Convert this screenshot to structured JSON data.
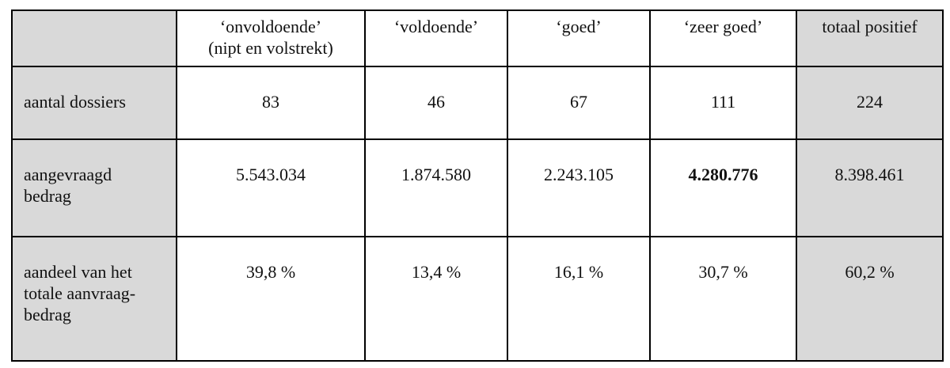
{
  "table": {
    "header": [
      [
        "‘onvoldoende’",
        "(nipt en volstrekt)"
      ],
      [
        "‘voldoende’"
      ],
      [
        "‘goed’"
      ],
      [
        "‘zeer goed’"
      ],
      [
        "totaal positief"
      ]
    ],
    "rows": [
      {
        "label": [
          "aantal dossiers"
        ],
        "cells": [
          "83",
          "46",
          "67",
          "111",
          "224"
        ]
      },
      {
        "label": [
          "aangevraagd",
          "bedrag"
        ],
        "cells": [
          "5.543.034",
          "1.874.580",
          "2.243.105",
          "4.280.776",
          "8.398.461"
        ]
      },
      {
        "label": [
          "aandeel van het",
          "totale aanvraag-",
          "bedrag"
        ],
        "cells": [
          "39,8 %",
          "13,4 %",
          "16,1 %",
          "30,7 %",
          "60,2 %"
        ]
      }
    ],
    "bold_cells": [
      {
        "row": 1,
        "column": 3
      }
    ]
  }
}
